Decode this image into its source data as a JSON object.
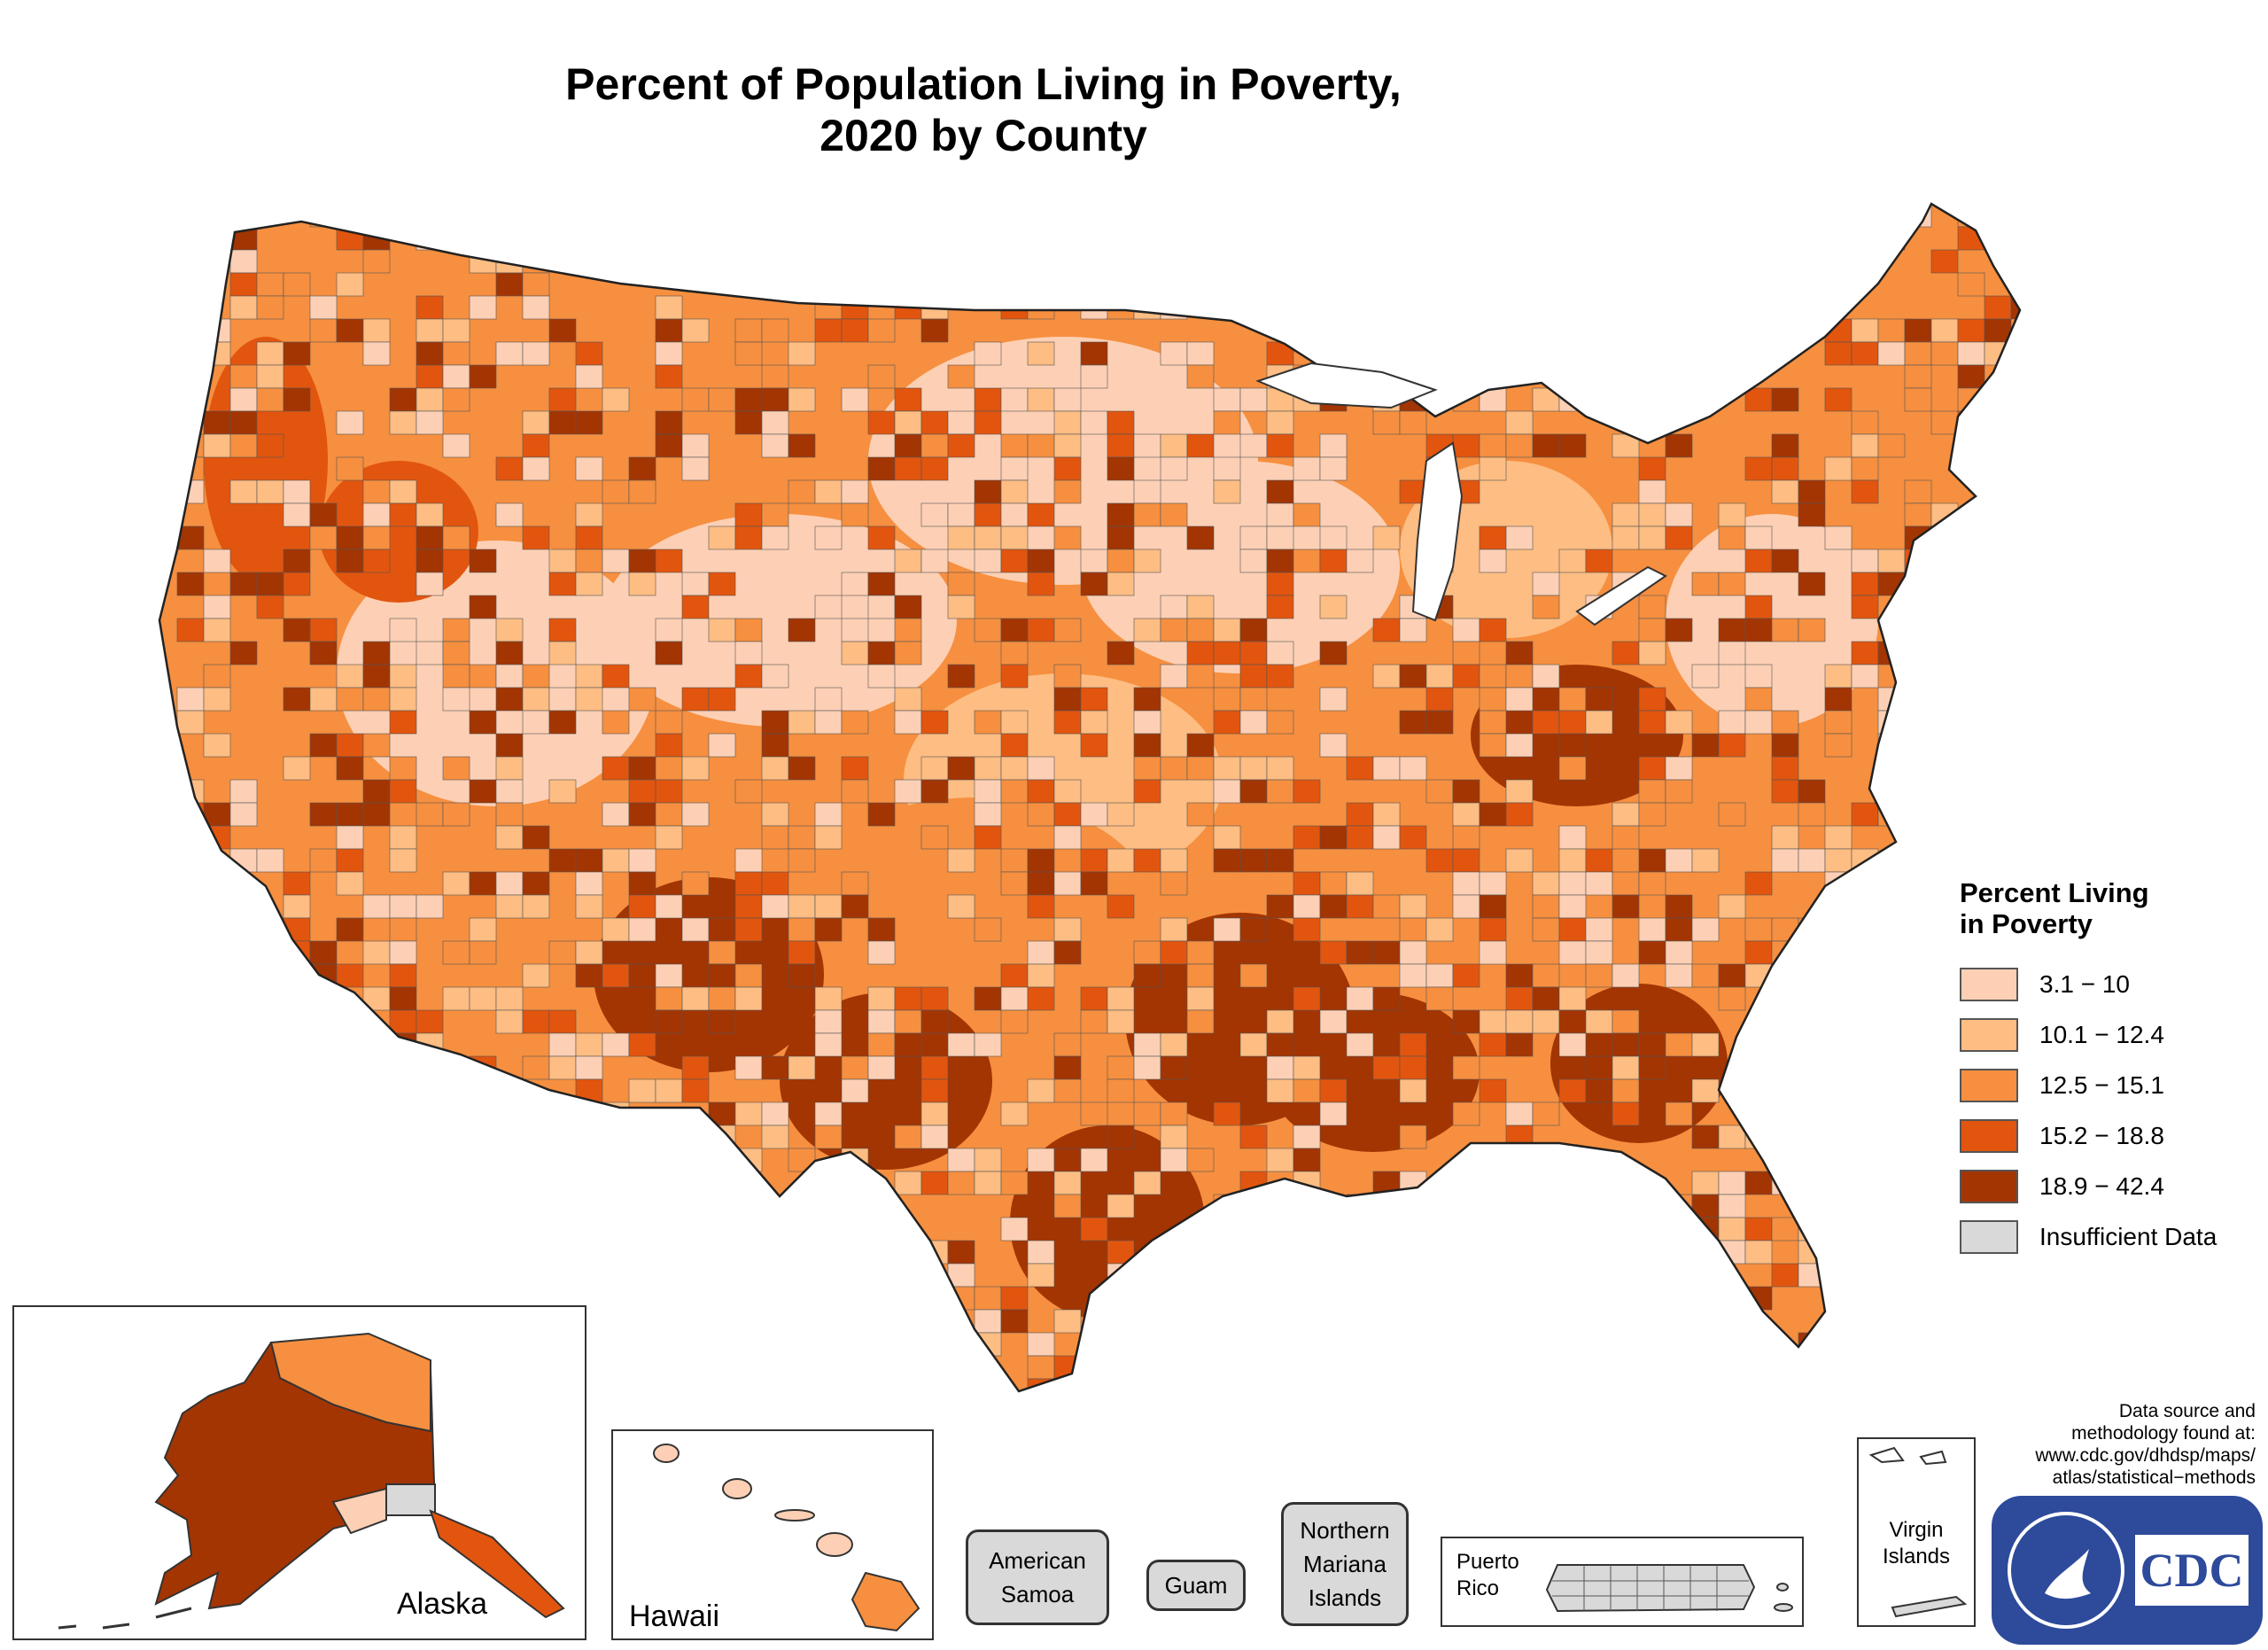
{
  "title": {
    "line1": "Percent of Population Living in Poverty,",
    "line2": "2020 by County"
  },
  "legend": {
    "title_line1": "Percent Living",
    "title_line2": "in Poverty",
    "items": [
      {
        "label": "3.1 − 10",
        "color": "#fdd0b5"
      },
      {
        "label": "10.1 − 12.4",
        "color": "#fdbd83"
      },
      {
        "label": "12.5 − 15.1",
        "color": "#f68f3f"
      },
      {
        "label": "15.2 − 18.8",
        "color": "#e2550e"
      },
      {
        "label": "18.9 − 42.4",
        "color": "#a33503"
      },
      {
        "label": "Insufficient Data",
        "color": "#d9d9d9"
      }
    ]
  },
  "insets": {
    "alaska": "Alaska",
    "hawaii": "Hawaii",
    "american_samoa": "American Samoa",
    "guam": "Guam",
    "northern_mariana": "Northern Mariana Islands",
    "puerto_rico": "Puerto Rico",
    "virgin_islands": "Virgin Islands"
  },
  "source": {
    "line1": "Data source and",
    "line2": "methodology found at:",
    "line3": "www.cdc.gov/dhdsp/maps/",
    "line4": "atlas/statistical−methods"
  },
  "logo": {
    "text": "CDC",
    "color": "#2d4a9b"
  }
}
